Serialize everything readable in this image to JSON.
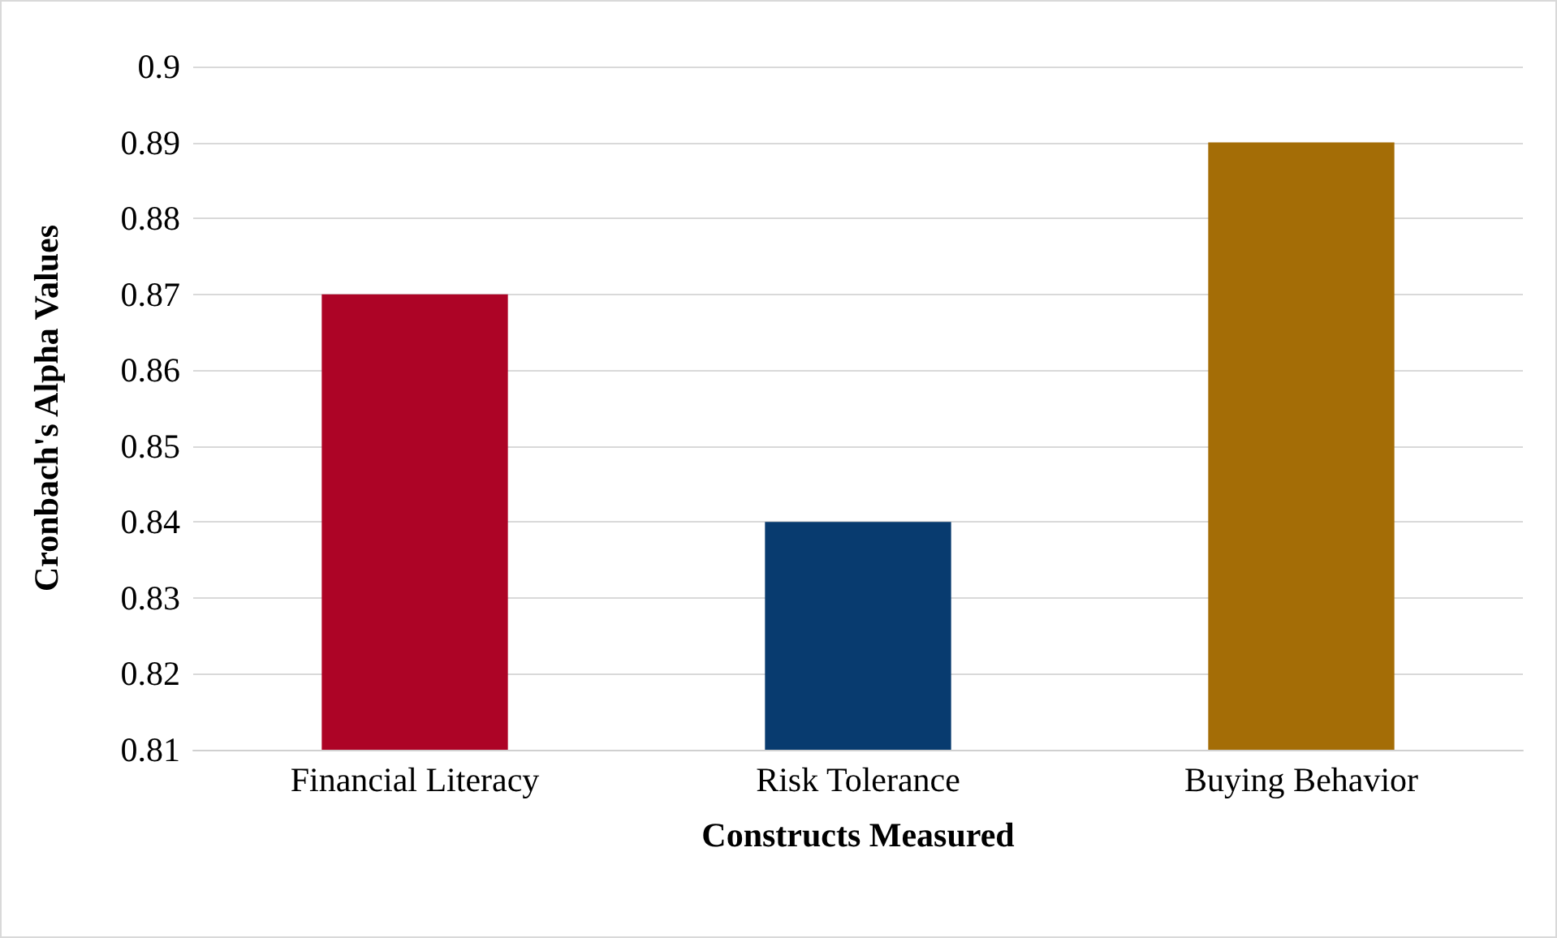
{
  "chart_data": {
    "type": "bar",
    "xlabel": "Constructs Measured",
    "ylabel": "Cronbach's Alpha Values",
    "categories": [
      "Financial Literacy",
      "Risk Tolerance",
      "Buying Behavior"
    ],
    "values": [
      0.87,
      0.84,
      0.89
    ],
    "colors": [
      "#ad0426",
      "#083b6f",
      "#a46d06"
    ],
    "ylim": [
      0.81,
      0.9
    ],
    "yticks": [
      0.81,
      0.82,
      0.83,
      0.84,
      0.85,
      0.86,
      0.87,
      0.88,
      0.89,
      0.9
    ],
    "grid": "y"
  }
}
